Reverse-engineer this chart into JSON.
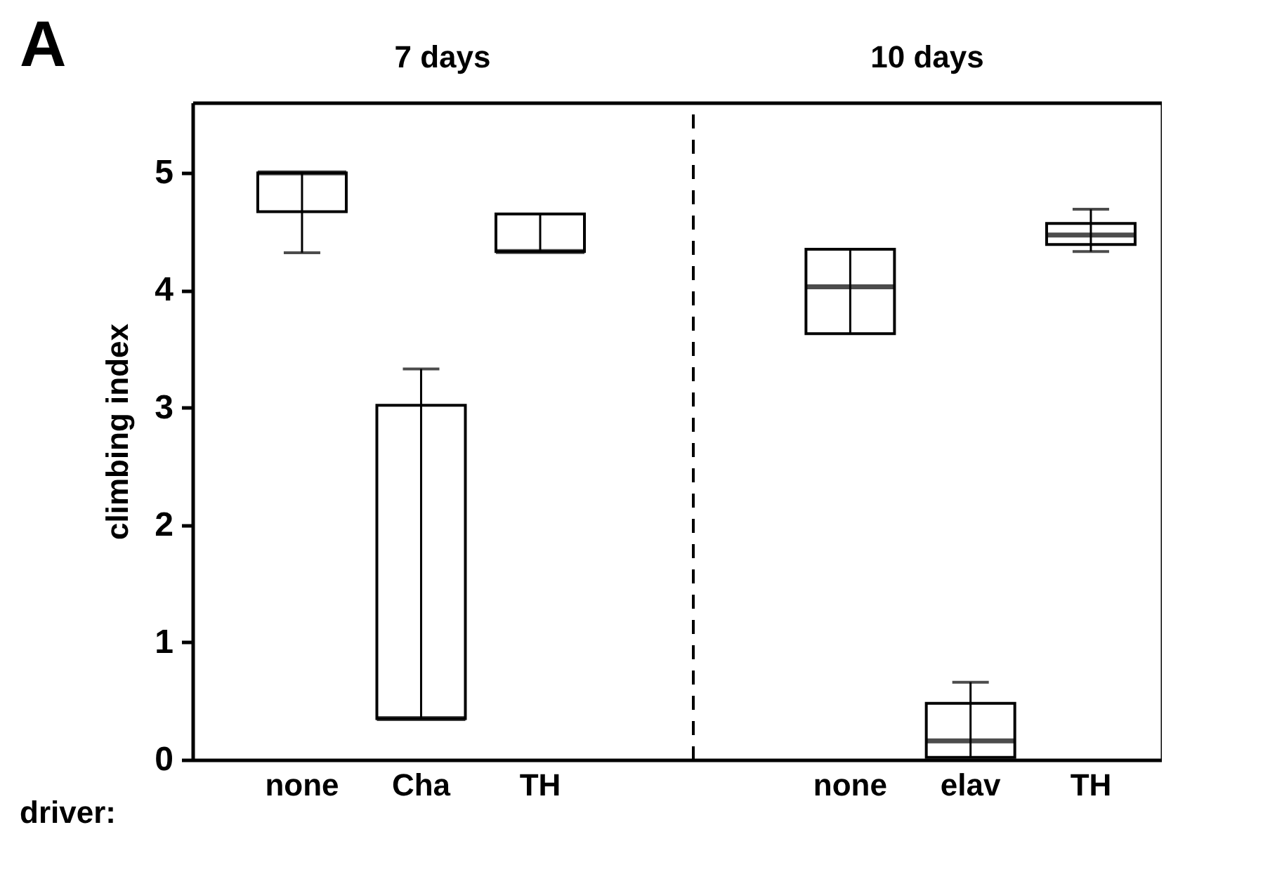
{
  "chart_data": [
    {
      "type": "box",
      "title": "7 days",
      "ylabel": "climbing index",
      "categories": [
        "none",
        "Cha",
        "TH"
      ],
      "boxes": [
        {
          "low": 4.32,
          "q1": 4.67,
          "median": 5.0,
          "q3": 5.0,
          "high": 5.0
        },
        {
          "low": 0.35,
          "q1": 0.35,
          "median": 0.35,
          "q3": 3.02,
          "high": 3.33
        },
        {
          "low": 4.33,
          "q1": 4.33,
          "median": 4.33,
          "q3": 4.65,
          "high": 4.65
        }
      ],
      "ylim": [
        0,
        5.6
      ],
      "yticks": [
        0,
        1,
        2,
        3,
        4,
        5
      ],
      "annotations": [
        "A",
        "driver:"
      ]
    },
    {
      "type": "box",
      "title": "10 days",
      "categories": [
        "none",
        "elav",
        "TH"
      ],
      "boxes": [
        {
          "low": 3.63,
          "q1": 3.63,
          "median": 4.03,
          "q3": 4.35,
          "high": 4.35
        },
        {
          "low": 0.02,
          "q1": 0.02,
          "median": 0.16,
          "q3": 0.48,
          "high": 0.66
        },
        {
          "low": 4.33,
          "q1": 4.39,
          "median": 4.47,
          "q3": 4.57,
          "high": 4.69
        }
      ],
      "ylim": [
        0,
        5.6
      ],
      "yticks": [
        0,
        1,
        2,
        3,
        4,
        5
      ],
      "tick_labels": "x"
    }
  ]
}
